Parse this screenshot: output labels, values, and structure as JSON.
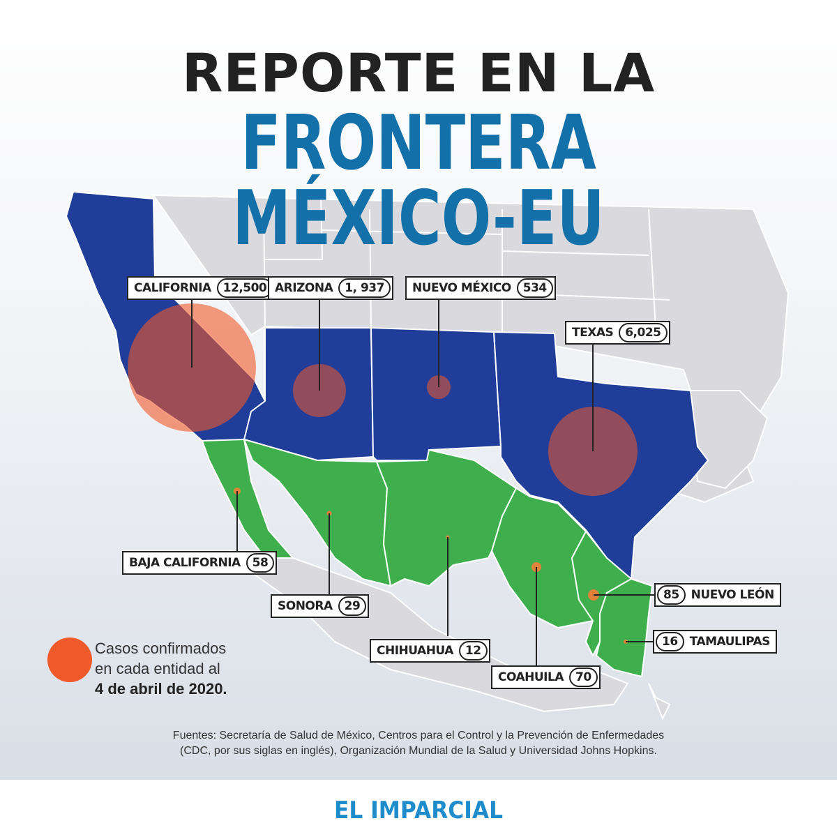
{
  "title_line1": "REPORTE EN LA",
  "title_line2": "FRONTERA MÉXICO-EU",
  "states": [
    {
      "name": "CALIFORNIA",
      "cases": "12,500"
    },
    {
      "name": "ARIZONA",
      "cases": "1, 937"
    },
    {
      "name": "NUEVO MÉXICO",
      "cases": "534"
    },
    {
      "name": "TEXAS",
      "cases": "6,025"
    },
    {
      "name": "BAJA CALIFORNIA",
      "cases": "58"
    },
    {
      "name": "SONORA",
      "cases": "29"
    },
    {
      "name": "CHIHUAHUA",
      "cases": "12"
    },
    {
      "name": "COAHUILA",
      "cases": "70"
    },
    {
      "name": "NUEVO LEÓN",
      "cases": "85"
    },
    {
      "name": "TAMAULIPAS",
      "cases": "16"
    }
  ],
  "legend": {
    "line1": "Casos confirmados",
    "line2": "en cada entidad al",
    "line3": "4 de abril de 2020."
  },
  "sources": {
    "line1": "Fuentes: Secretaría de Salud de México, Centros para el Control y la Prevención de Enfermedades",
    "line2": "(CDC, por sus siglas en inglés), Organización Mundial de la Salud y Universidad Johns Hopkins."
  },
  "logo": "EL IMPARCIAL",
  "colors": {
    "us_states": "#1f3d99",
    "mexico_states": "#3faf4d",
    "case_bubble": "#f0592a",
    "title_blue": "#1470a8",
    "background_land": "#d9d9de"
  }
}
